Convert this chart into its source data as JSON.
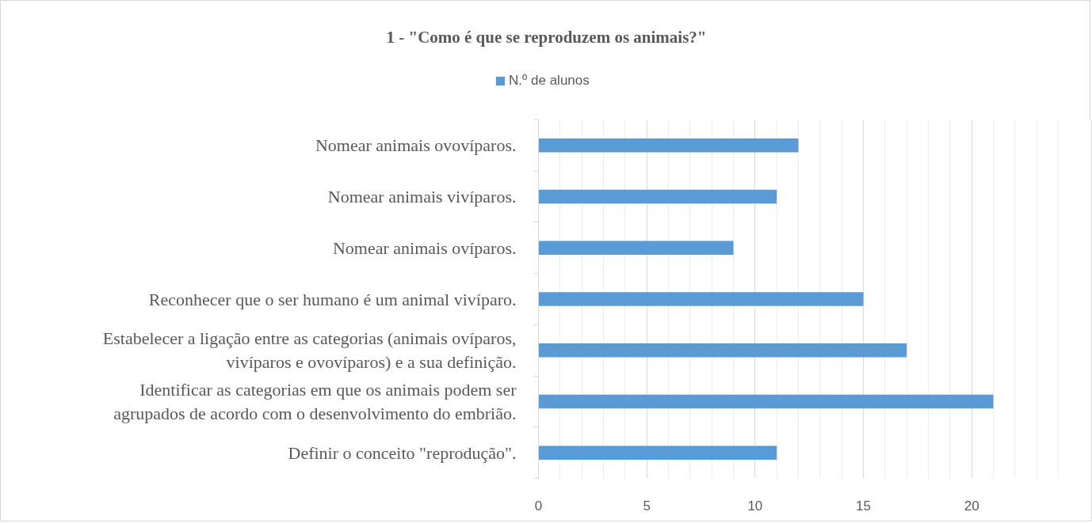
{
  "chart_data": {
    "type": "bar",
    "orientation": "horizontal",
    "title": "1 - \"Como é que se reproduzem os animais?\"",
    "categories": [
      "Nomear animais ovovíparos.",
      "Nomear animais vivíparos.",
      "Nomear animais ovíparos.",
      "Reconhecer que o ser humano é um animal vivíparo.",
      "Estabelecer a ligação entre as categorias (animais ovíparos, vivíparos e ovovíparos) e a sua definição.",
      "Identificar as categorias em que os animais podem ser agrupados de acordo com o desenvolvimento do embrião.",
      "Definir o conceito \"reprodução\"."
    ],
    "series": [
      {
        "name": "N.º de alunos",
        "color": "#5b9bd5",
        "values": [
          12,
          11,
          9,
          15,
          17,
          21,
          11
        ]
      }
    ],
    "xlim": [
      0,
      24
    ],
    "xticks": [
      0,
      {
        "value": 1,
        "label": null
      },
      {
        "value": 2,
        "label": null
      },
      {
        "value": 3,
        "label": null
      },
      {
        "value": 4,
        "label": null
      },
      5,
      {
        "value": 6,
        "label": null
      },
      {
        "value": 7,
        "label": null
      },
      {
        "value": 8,
        "label": null
      },
      {
        "value": 9,
        "label": null
      },
      10,
      {
        "value": 11,
        "label": null
      },
      {
        "value": 12,
        "label": null
      },
      {
        "value": 13,
        "label": null
      },
      {
        "value": 14,
        "label": null
      },
      15,
      {
        "value": 16,
        "label": null
      },
      {
        "value": 17,
        "label": null
      },
      {
        "value": 18,
        "label": null
      },
      {
        "value": 19,
        "label": null
      },
      20,
      {
        "value": 21,
        "label": null
      },
      {
        "value": 22,
        "label": null
      },
      {
        "value": 23,
        "label": null
      },
      {
        "value": 24,
        "label": null
      }
    ],
    "grid": "x",
    "legend": "top"
  }
}
